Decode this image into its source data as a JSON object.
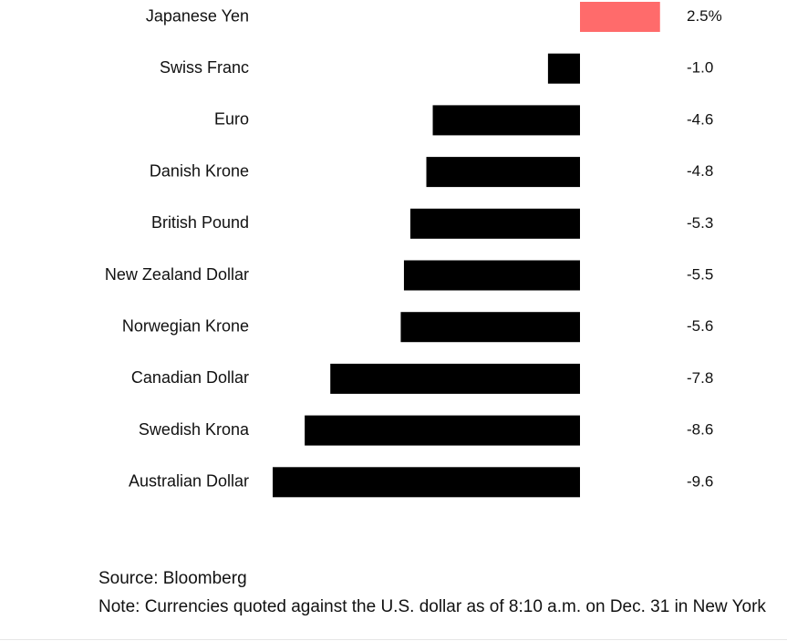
{
  "chart_data": {
    "type": "bar",
    "orientation": "horizontal",
    "categories": [
      "Japanese Yen",
      "Swiss Franc",
      "Euro",
      "Danish Krone",
      "British Pound",
      "New Zealand Dollar",
      "Norwegian Krone",
      "Canadian Dollar",
      "Swedish Krona",
      "Australian Dollar"
    ],
    "values": [
      2.5,
      -1.0,
      -4.6,
      -4.8,
      -5.3,
      -5.5,
      -5.6,
      -7.8,
      -8.6,
      -9.6
    ],
    "value_labels": [
      "2.5%",
      "-1.0",
      "-4.6",
      "-4.8",
      "-5.3",
      "-5.5",
      "-5.6",
      "-7.8",
      "-8.6",
      "-9.6"
    ],
    "xlim": [
      -9.6,
      2.5
    ],
    "grid": false,
    "legend": "none",
    "colors": {
      "positive": "#ff6b6b",
      "negative": "#000000"
    }
  },
  "footer": {
    "source": "Source: Bloomberg",
    "note": "Note: Currencies quoted against the U.S. dollar as of 8:10 a.m. on Dec. 31 in New York"
  }
}
